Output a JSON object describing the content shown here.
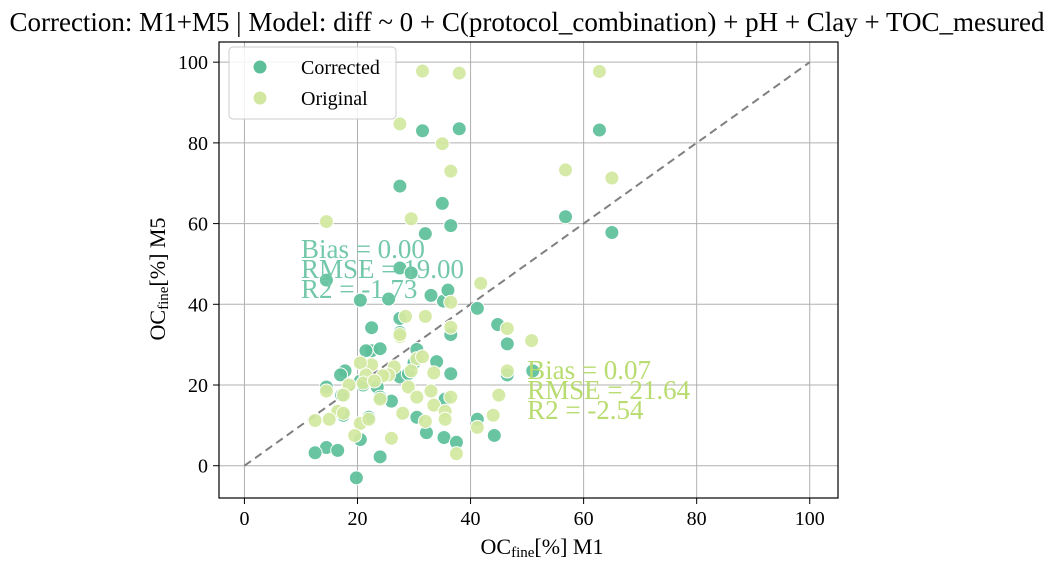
{
  "chart_data": {
    "type": "scatter",
    "title": "Correction: M1+M5 | Model: diff ~ 0 + C(protocol_combination) + pH + Clay + TOC_mesured",
    "xlabel": {
      "main": "OC",
      "sub": "fine",
      "rest": "[%] M1"
    },
    "ylabel": {
      "main": "OC",
      "sub": "fine",
      "rest": "[%] M5"
    },
    "xlim": [
      -4.5,
      105
    ],
    "ylim": [
      -8,
      105
    ],
    "xticks": [
      0,
      20,
      40,
      60,
      80,
      100
    ],
    "yticks": [
      0,
      20,
      40,
      60,
      80,
      100
    ],
    "grid": true,
    "legend_position": "top-left",
    "reference_line": {
      "from": [
        0,
        0
      ],
      "to": [
        100,
        100
      ],
      "color": "#808080",
      "style": "dashed"
    },
    "series": [
      {
        "name": "Corrected",
        "color": "#5cbf9a",
        "points": [
          [
            14.5,
            4.5
          ],
          [
            12.5,
            3.2
          ],
          [
            16.5,
            3.8
          ],
          [
            19.8,
            -3
          ],
          [
            20.5,
            6.5
          ],
          [
            24.0,
            2.2
          ],
          [
            32.2,
            8.2
          ],
          [
            35.3,
            7.0
          ],
          [
            37.5,
            5.8
          ],
          [
            44.2,
            7.5
          ],
          [
            41.2,
            11.5
          ],
          [
            30.5,
            12.0
          ],
          [
            22.0,
            12.0
          ],
          [
            17.5,
            12.5
          ],
          [
            17.2,
            17.5
          ],
          [
            14.5,
            19.5
          ],
          [
            17.8,
            23.5
          ],
          [
            17.0,
            22.5
          ],
          [
            20.5,
            21.0
          ],
          [
            21.0,
            20.0
          ],
          [
            23.5,
            19.5
          ],
          [
            27.5,
            22.0
          ],
          [
            29.0,
            22.8
          ],
          [
            34.0,
            25.8
          ],
          [
            36.5,
            22.8
          ],
          [
            35.5,
            16.5
          ],
          [
            26.0,
            16.0
          ],
          [
            24.0,
            17.0
          ],
          [
            22.5,
            28.5
          ],
          [
            21.5,
            28.5
          ],
          [
            24.0,
            29.0
          ],
          [
            22.5,
            34.2
          ],
          [
            27.5,
            33.0
          ],
          [
            27.5,
            36.5
          ],
          [
            30.5,
            28.8
          ],
          [
            30.0,
            25.5
          ],
          [
            36.5,
            32.5
          ],
          [
            44.8,
            35.0
          ],
          [
            46.5,
            30.2
          ],
          [
            46.5,
            22.5
          ],
          [
            51.0,
            23.5
          ],
          [
            35.2,
            40.8
          ],
          [
            36.0,
            43.5
          ],
          [
            33.0,
            42.2
          ],
          [
            41.2,
            39.0
          ],
          [
            25.5,
            41.3
          ],
          [
            20.5,
            41.0
          ],
          [
            14.5,
            46.0
          ],
          [
            27.5,
            49.0
          ],
          [
            29.5,
            47.8
          ],
          [
            32.0,
            57.5
          ],
          [
            36.5,
            59.5
          ],
          [
            35.0,
            65.0
          ],
          [
            27.5,
            69.3
          ],
          [
            31.5,
            83.0
          ],
          [
            38.0,
            83.5
          ],
          [
            56.8,
            61.7
          ],
          [
            62.8,
            83.2
          ],
          [
            65.0,
            57.8
          ]
        ]
      },
      {
        "name": "Original",
        "color": "#d2e8a0",
        "points": [
          [
            31.5,
            97.8
          ],
          [
            38.0,
            97.3
          ],
          [
            62.8,
            97.7
          ],
          [
            27.5,
            84.7
          ],
          [
            35.0,
            79.8
          ],
          [
            36.5,
            73.0
          ],
          [
            56.8,
            73.3
          ],
          [
            65.0,
            71.3
          ],
          [
            14.5,
            60.5
          ],
          [
            29.5,
            61.2
          ],
          [
            41.8,
            45.2
          ],
          [
            36.5,
            40.5
          ],
          [
            32.0,
            37.0
          ],
          [
            28.5,
            37.0
          ],
          [
            36.5,
            34.3
          ],
          [
            46.5,
            34.0
          ],
          [
            50.8,
            31.0
          ],
          [
            27.5,
            32.0
          ],
          [
            27.5,
            32.5
          ],
          [
            30.5,
            26.5
          ],
          [
            31.5,
            27.0
          ],
          [
            29.5,
            23.5
          ],
          [
            33.5,
            23.0
          ],
          [
            29.0,
            19.5
          ],
          [
            26.5,
            24.5
          ],
          [
            25.5,
            22.5
          ],
          [
            24.5,
            22.3
          ],
          [
            22.5,
            25.0
          ],
          [
            20.5,
            25.5
          ],
          [
            21.5,
            22.5
          ],
          [
            21.0,
            20.5
          ],
          [
            23.0,
            21.0
          ],
          [
            18.5,
            20.0
          ],
          [
            17.5,
            17.5
          ],
          [
            14.5,
            18.5
          ],
          [
            16.5,
            13.5
          ],
          [
            17.5,
            13.0
          ],
          [
            15.0,
            11.5
          ],
          [
            12.5,
            11.2
          ],
          [
            20.5,
            10.5
          ],
          [
            22.0,
            11.5
          ],
          [
            24.0,
            16.5
          ],
          [
            28.0,
            13.0
          ],
          [
            30.5,
            17.0
          ],
          [
            33.0,
            18.5
          ],
          [
            33.5,
            15.0
          ],
          [
            35.5,
            13.5
          ],
          [
            35.5,
            11.5
          ],
          [
            32.0,
            11.0
          ],
          [
            36.5,
            17.0
          ],
          [
            44.0,
            12.5
          ],
          [
            45.0,
            17.5
          ],
          [
            46.5,
            23.5
          ],
          [
            41.2,
            9.5
          ],
          [
            26.0,
            6.8
          ],
          [
            19.5,
            7.5
          ],
          [
            37.5,
            3.0
          ]
        ]
      }
    ],
    "annotations": [
      {
        "series": "Corrected",
        "x": 10,
        "lines": [
          "Bias = 0.00",
          "RMSE = 19.00",
          "R2 = -1.73"
        ],
        "color": "#74c8aa",
        "top_y": 51.5
      },
      {
        "series": "Original",
        "x": 50,
        "lines": [
          "Bias = 0.07",
          "RMSE = 21.64",
          "R2 = -2.54"
        ],
        "color": "#b8dc70",
        "top_y": 21.5
      }
    ]
  }
}
